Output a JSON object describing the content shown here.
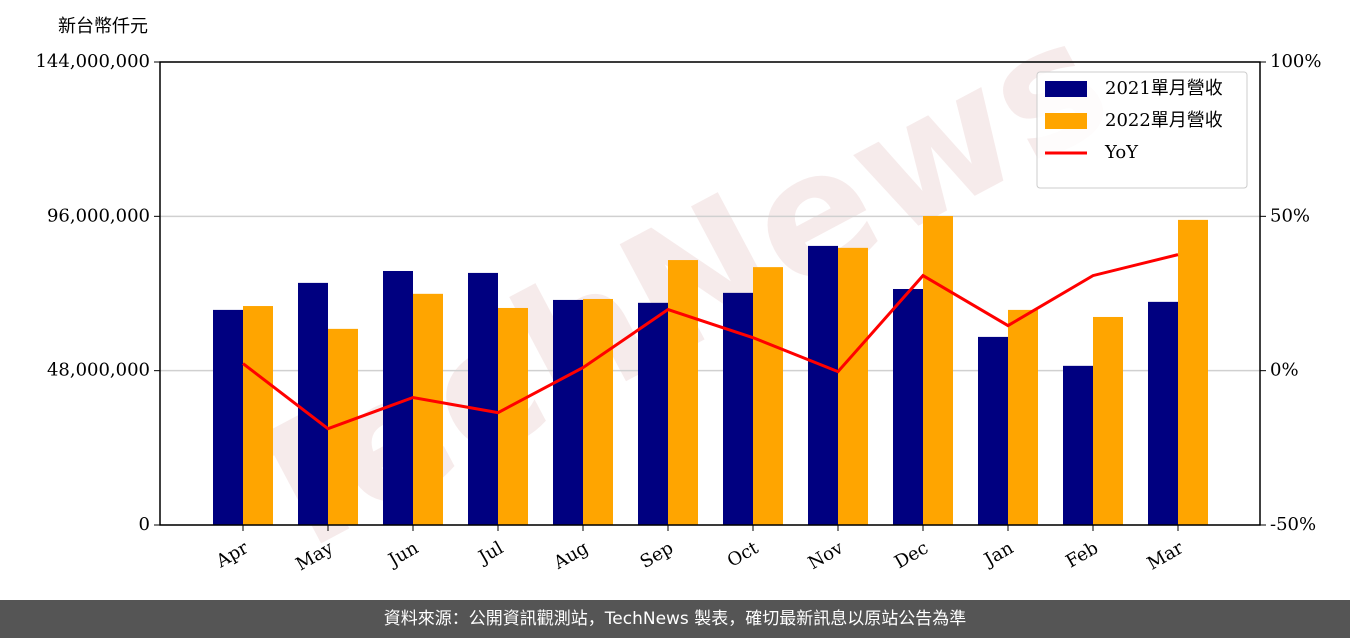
{
  "chart_data": {
    "type": "bar-line",
    "unit_label": "新台幣仟元",
    "watermark": "TechNews",
    "footer": "資料來源：公開資訊觀測站，TechNews 製表，確切最新訊息以原站公告為準",
    "categories": [
      "Apr",
      "May",
      "Jun",
      "Jul",
      "Aug",
      "Sep",
      "Oct",
      "Nov",
      "Dec",
      "Jan",
      "Feb",
      "Mar"
    ],
    "series": [
      {
        "name": "2021單月營收",
        "color": "#000080",
        "type": "bar",
        "values": [
          66900000,
          75300000,
          79000000,
          78400000,
          70000000,
          69100000,
          72200000,
          86800000,
          73400000,
          58500000,
          49500000,
          69400000
        ]
      },
      {
        "name": "2022單月營收",
        "color": "#ffa500",
        "type": "bar",
        "values": [
          68100000,
          61000000,
          71900000,
          67500000,
          70300000,
          82400000,
          80200000,
          86200000,
          96100000,
          66900000,
          64700000,
          94900000
        ]
      },
      {
        "name": "YoY",
        "color": "#ff0000",
        "type": "line",
        "axis": "y2",
        "values": [
          2.3,
          -18.8,
          -8.7,
          -13.6,
          1.0,
          19.8,
          10.7,
          -0.3,
          30.8,
          14.6,
          30.8,
          37.6
        ]
      }
    ],
    "ylim": [
      0,
      144000000
    ],
    "yticks": [
      0,
      {
        "value": 48000000,
        "label": "48,000,000"
      },
      {
        "value": 96000000,
        "label": "96,000,000"
      },
      {
        "value": 144000000,
        "label": "144,000,000"
      }
    ],
    "y2lim": [
      -50,
      100
    ],
    "y2ticks": [
      {
        "value": -50,
        "label": "-50%"
      },
      {
        "value": 0,
        "label": "0%"
      },
      {
        "value": 50,
        "label": "50%"
      },
      {
        "value": 100,
        "label": "100%"
      }
    ],
    "grid": true,
    "legend": "upper right"
  }
}
